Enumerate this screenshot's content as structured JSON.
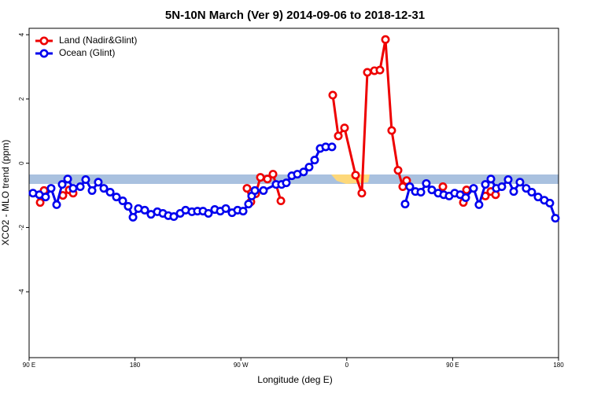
{
  "chart_data": {
    "type": "line",
    "title": "5N-10N March (Ver 9)   2014-09-06 to 2018-12-31",
    "x_label": "Longitude (deg E)",
    "y_label": "XCO2 - MLO trend (ppm)",
    "xlim": [
      90,
      540
    ],
    "ylim": [
      -6.05,
      4.2
    ],
    "xticks": [
      {
        "value": 90,
        "label": "90 E"
      },
      180,
      {
        "value": 270,
        "label": "90 W"
      },
      {
        "value": 360,
        "label": "0"
      },
      {
        "value": 450,
        "label": "90 E"
      },
      {
        "value": 540,
        "label": "180"
      }
    ],
    "yticks": [
      -4,
      -2,
      0,
      2,
      4
    ],
    "legend": "top-left",
    "series": [
      {
        "name": "Land (Nadir&Glint)",
        "color": "#ee0000",
        "x": [
          99.4,
          102.7,
          110,
          118.7,
          124.1,
          127.4,
          200,
          275.2,
          278.5,
          282.6,
          286.6,
          292.6,
          297.3,
          304.0,
          320,
          348.1,
          352.8,
          358.1,
          367.5,
          372.8,
          377.5,
          383.5,
          388.2,
          392.9,
          398.2,
          403.6,
          407.6,
          410.9,
          420,
          441.7,
          444,
          459.1,
          461.8,
          470,
          477.8,
          482.5,
          486.5
        ],
        "values": [
          -1.22,
          -0.85,
          null,
          -1.0,
          -0.83,
          -0.93,
          null,
          -0.78,
          -1.2,
          -0.95,
          -0.44,
          -0.49,
          -0.34,
          -1.17,
          null,
          2.12,
          0.85,
          1.1,
          -0.37,
          -0.93,
          2.83,
          2.88,
          2.9,
          3.85,
          1.02,
          -0.22,
          -0.73,
          -0.54,
          null,
          -0.73,
          null,
          -1.22,
          -0.83,
          null,
          -1.02,
          -0.88,
          -0.98
        ]
      },
      {
        "name": "Ocean (Glint)",
        "color": "#0000ee",
        "x": [
          93.3,
          98.7,
          104.0,
          108.7,
          113.4,
          118.1,
          122.8,
          127.4,
          133.5,
          138.1,
          143.5,
          148.8,
          153.5,
          158.9,
          164.2,
          169.6,
          174.2,
          178.3,
          182.9,
          188.3,
          193.6,
          199.0,
          203.7,
          208.3,
          213.0,
          218.4,
          223.0,
          228.4,
          233.1,
          237.8,
          242.4,
          247.8,
          252.5,
          257.2,
          262.5,
          267.2,
          271.9,
          276.5,
          279.2,
          281.9,
          289.2,
          299.9,
          304.6,
          308.6,
          313.3,
          318.0,
          323.3,
          328.0,
          332.7,
          337.4,
          342.1,
          347.4,
          380,
          409.6,
          413.6,
          418.3,
          423.0,
          427.6,
          432.3,
          437.7,
          442.4,
          447.0,
          451.7,
          456.4,
          461.1,
          467.8,
          472.4,
          477.8,
          482.5,
          487.1,
          491.8,
          497.2,
          501.9,
          507.2,
          512.5,
          517.2,
          522.6,
          527.9,
          532.6,
          537.3
        ],
        "values": [
          -0.93,
          -0.98,
          -1.05,
          -0.78,
          -1.29,
          -0.66,
          -0.49,
          -0.78,
          -0.73,
          -0.51,
          -0.85,
          -0.59,
          -0.78,
          -0.9,
          -1.05,
          -1.17,
          -1.34,
          -1.68,
          -1.41,
          -1.46,
          -1.59,
          -1.51,
          -1.56,
          -1.63,
          -1.66,
          -1.56,
          -1.46,
          -1.51,
          -1.49,
          -1.49,
          -1.56,
          -1.44,
          -1.49,
          -1.41,
          -1.54,
          -1.46,
          -1.49,
          -1.27,
          -1.02,
          -0.85,
          -0.85,
          -0.66,
          -0.66,
          -0.61,
          -0.39,
          -0.34,
          -0.27,
          -0.12,
          0.1,
          0.46,
          0.51,
          0.51,
          null,
          -1.27,
          -0.73,
          -0.88,
          -0.9,
          -0.63,
          -0.83,
          -0.93,
          -0.98,
          -1.02,
          -0.93,
          -0.98,
          -1.07,
          -0.78,
          -1.29,
          -0.66,
          -0.49,
          -0.78,
          -0.73,
          -0.51,
          -0.88,
          -0.59,
          -0.78,
          -0.9,
          -1.05,
          -1.15,
          -1.24,
          -1.71
        ]
      }
    ]
  }
}
